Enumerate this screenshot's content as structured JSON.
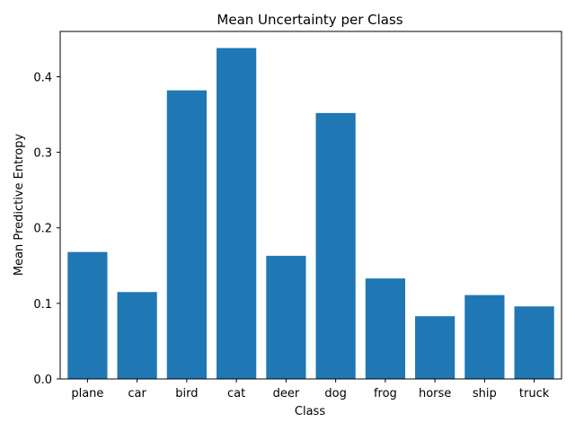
{
  "chart_data": {
    "type": "bar",
    "title": "Mean Uncertainty per Class",
    "xlabel": "Class",
    "ylabel": "Mean Predictive Entropy",
    "categories": [
      "plane",
      "car",
      "bird",
      "cat",
      "deer",
      "dog",
      "frog",
      "horse",
      "ship",
      "truck"
    ],
    "values": [
      0.168,
      0.115,
      0.382,
      0.438,
      0.163,
      0.352,
      0.133,
      0.083,
      0.111,
      0.096
    ],
    "ylim": [
      0,
      0.46
    ],
    "yticks": [
      0.0,
      0.1,
      0.2,
      0.3,
      0.4
    ],
    "ytick_labels": [
      "0.0",
      "0.1",
      "0.2",
      "0.3",
      "0.4"
    ],
    "bar_color": "#1f77b4",
    "grid": false,
    "legend": false
  }
}
